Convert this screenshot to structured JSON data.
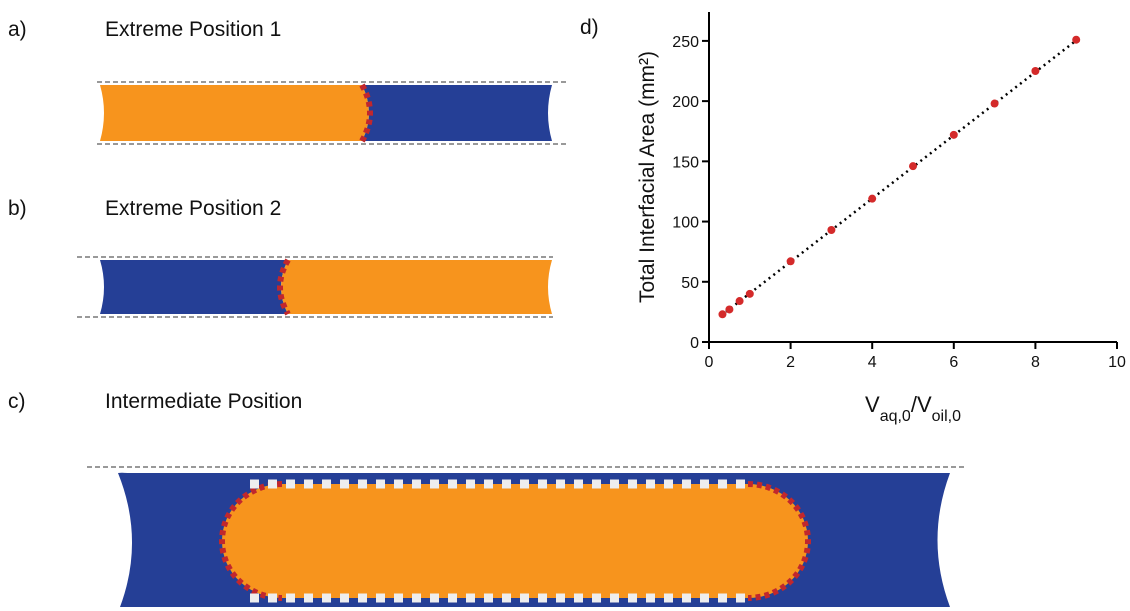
{
  "panels": [
    {
      "label": "a)",
      "title": "Extreme Position 1"
    },
    {
      "label": "b)",
      "title": "Extreme Position 2"
    },
    {
      "label": "c)",
      "title": "Intermediate Position"
    }
  ],
  "chart_data": {
    "type": "scatter",
    "panel_label": "d)",
    "ylabel": "Total Interfacial Area (mm²)",
    "xlabel_parts": [
      "V",
      "aq,0",
      "/V",
      "oil,0"
    ],
    "x": [
      0.33,
      0.5,
      0.75,
      1,
      2,
      3,
      4,
      5,
      6,
      7,
      8,
      9
    ],
    "values": [
      23,
      27,
      34,
      40,
      67,
      93,
      119,
      146,
      172,
      198,
      225,
      251
    ],
    "color": "#d42a2a",
    "fit": {
      "x": [
        0.3,
        9.1
      ],
      "values": [
        22,
        253
      ]
    },
    "xlim": [
      0,
      10
    ],
    "xticks": [
      0,
      2,
      4,
      6,
      8,
      10
    ],
    "ylim": [
      0,
      274
    ],
    "yticks": [
      0,
      50,
      100,
      150,
      200,
      250
    ]
  }
}
